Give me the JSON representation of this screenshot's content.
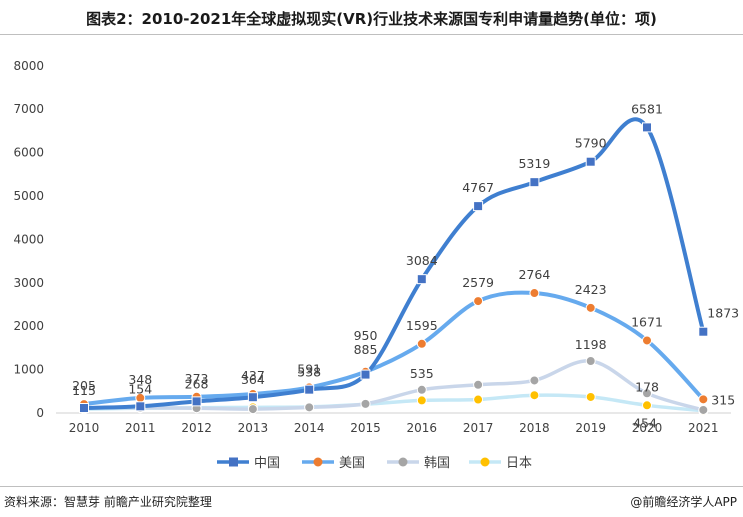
{
  "header": {
    "title": "图表2：2010-2021年全球虚拟现实(VR)行业技术来源国专利申请量趋势(单位：项)"
  },
  "footer": {
    "source": "资料来源：智慧芽 前瞻产业研究院整理",
    "credit": "@前瞻经济学人APP"
  },
  "colors": {
    "china": "#4472c4",
    "usa": "#ed7d31",
    "korea": "#a5a5a5",
    "japan": "#ffc000",
    "china_line": "#3f7fd0",
    "usa_line": "#66aaee",
    "korea_line": "#c9d6ea",
    "japan_line": "#c5e8f6"
  },
  "chart_data": {
    "type": "line",
    "title": "图表2：2010-2021年全球虚拟现实(VR)行业技术来源国专利申请量趋势(单位：项)",
    "categories": [
      "2010",
      "2011",
      "2012",
      "2013",
      "2014",
      "2015",
      "2016",
      "2017",
      "2018",
      "2019",
      "2020",
      "2021"
    ],
    "ylim": [
      0,
      8000
    ],
    "yticks": [
      0,
      1000,
      2000,
      3000,
      4000,
      5000,
      6000,
      7000,
      8000
    ],
    "grid": false,
    "legend": "bottom",
    "series": [
      {
        "name": "中国",
        "marker": "square",
        "values": [
          115,
          154,
          268,
          364,
          538,
          885,
          3084,
          4767,
          5319,
          5790,
          6581,
          1873
        ],
        "labels": [
          "115",
          "154",
          "268",
          "364",
          "538",
          "885",
          "3084",
          "4767",
          "5319",
          "5790",
          "6581",
          "1873"
        ]
      },
      {
        "name": "美国",
        "marker": "circle",
        "values": [
          205,
          348,
          373,
          437,
          591,
          950,
          1595,
          2579,
          2764,
          2423,
          1671,
          315
        ],
        "labels": [
          "205",
          "348",
          "373",
          "437",
          "591",
          "950",
          "1595",
          "2579",
          "2764",
          "2423",
          "1671",
          "315"
        ]
      },
      {
        "name": "韩国",
        "marker": "circle",
        "values": [
          120,
          120,
          110,
          90,
          130,
          210,
          535,
          650,
          750,
          1198,
          454,
          70
        ],
        "labels": [
          "",
          "",
          "",
          "",
          "",
          "",
          "535",
          "",
          "",
          "1198",
          "454",
          ""
        ]
      },
      {
        "name": "日本",
        "marker": "circle",
        "values": [
          90,
          110,
          120,
          130,
          140,
          200,
          290,
          310,
          410,
          370,
          178,
          50
        ],
        "labels": [
          "",
          "",
          "",
          "",
          "",
          "",
          "",
          "",
          "",
          "",
          "178",
          ""
        ]
      }
    ]
  }
}
